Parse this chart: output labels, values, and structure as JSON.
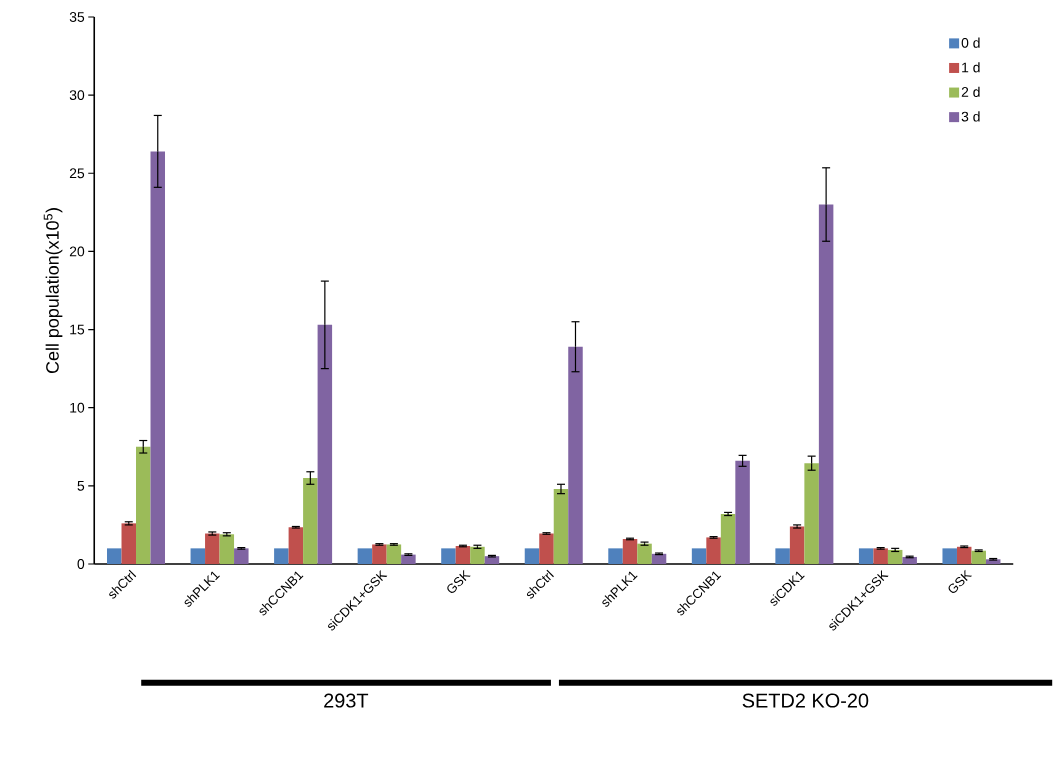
{
  "chart_data": {
    "type": "bar",
    "ylabel": "Cell population(x10$^{5}$)",
    "categories": [
      "shCtrl",
      "shPLK1",
      "shCCNB1",
      "siCDK1+GSK",
      "GSK",
      "shCtrl",
      "shPLK1",
      "shCCNB1",
      "siCDK1",
      "siCDK1+GSK",
      "GSK"
    ],
    "series": [
      {
        "name": "0 d",
        "color": "#4f81bd",
        "values": [
          1,
          1,
          1,
          1,
          1,
          1,
          1,
          1,
          1,
          1,
          1
        ]
      },
      {
        "name": "1 d",
        "color": "#c0504d",
        "values": [
          2.6,
          1.95,
          2.35,
          1.25,
          1.15,
          1.95,
          1.6,
          1.7,
          2.4,
          1.0,
          1.1
        ],
        "errors": [
          0.1,
          0.1,
          0.05,
          0.05,
          0.05,
          0.05,
          0.05,
          0.05,
          0.1,
          0.05,
          0.05
        ]
      },
      {
        "name": "2 d",
        "color": "#9bbb59",
        "values": [
          7.5,
          1.9,
          5.5,
          1.25,
          1.1,
          4.8,
          1.3,
          3.2,
          6.45,
          0.9,
          0.85
        ],
        "errors": [
          0.4,
          0.1,
          0.4,
          0.05,
          0.1,
          0.3,
          0.1,
          0.1,
          0.45,
          0.1,
          0.05
        ]
      },
      {
        "name": "3 d",
        "color": "#8064a2",
        "values": [
          26.4,
          1.0,
          15.3,
          0.6,
          0.5,
          13.9,
          0.65,
          6.6,
          23.0,
          0.45,
          0.3
        ],
        "errors": [
          2.3,
          0.05,
          2.8,
          0.05,
          0.05,
          1.6,
          0.05,
          0.35,
          2.35,
          0.05,
          0.05
        ]
      }
    ],
    "ylim": [
      0,
      35
    ],
    "yticks": [
      0,
      5,
      10,
      15,
      20,
      25,
      30,
      35
    ],
    "grid": false,
    "legend": "top right",
    "annotations": [
      "293T",
      "SETD2 KO-20"
    ]
  }
}
